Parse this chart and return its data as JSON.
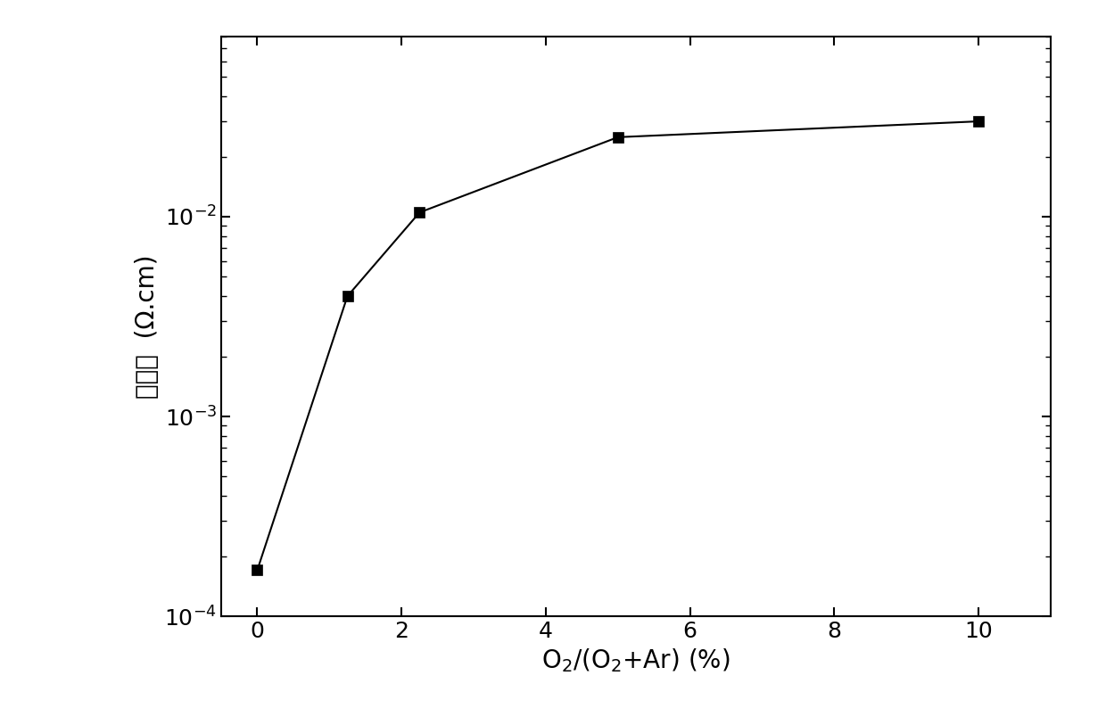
{
  "x": [
    0,
    1.25,
    2.25,
    5,
    10
  ],
  "y": [
    0.00017,
    0.004,
    0.0105,
    0.025,
    0.03
  ],
  "xlabel": "O$_2$/(O$_2$+Ar) (%)",
  "ylabel": "电阻率  (Ω.cm)",
  "xlim": [
    -0.5,
    11
  ],
  "ylim_low": 0.0001,
  "ylim_high": 0.08,
  "xticks": [
    0,
    2,
    4,
    6,
    8,
    10
  ],
  "line_color": "black",
  "marker": "s",
  "marker_size": 9,
  "marker_color": "black",
  "background_color": "#ffffff",
  "fig_width": 12.4,
  "fig_height": 8.13,
  "dpi": 100,
  "tick_fontsize": 18,
  "label_fontsize": 20,
  "chinese_fontsize": 22
}
